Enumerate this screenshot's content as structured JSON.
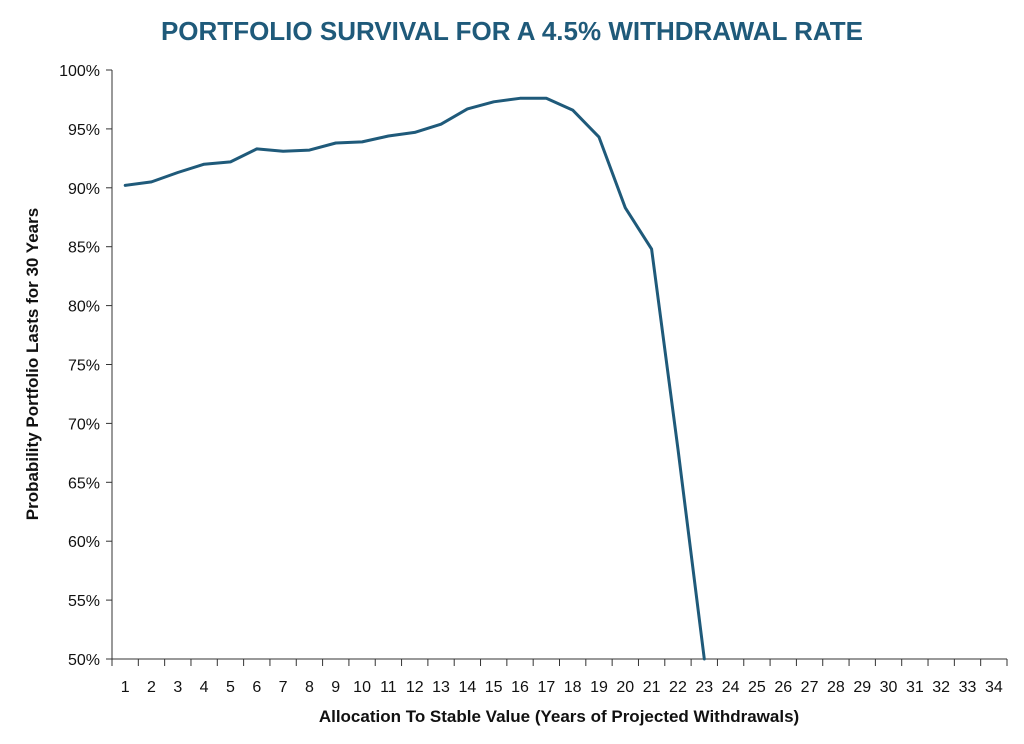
{
  "chart_data": {
    "type": "line",
    "title": "PORTFOLIO SURVIVAL FOR A 4.5% WITHDRAWAL RATE",
    "xlabel": "Allocation To Stable Value (Years of Projected Withdrawals)",
    "ylabel": "Probability Portfolio Lasts for 30 Years",
    "x_categories": [
      "1",
      "2",
      "3",
      "4",
      "5",
      "6",
      "7",
      "8",
      "9",
      "10",
      "11",
      "12",
      "13",
      "14",
      "15",
      "16",
      "17",
      "18",
      "19",
      "20",
      "21",
      "22",
      "23",
      "24",
      "25",
      "26",
      "27",
      "28",
      "29",
      "30",
      "31",
      "32",
      "33",
      "34"
    ],
    "y_ticks": [
      "50%",
      "55%",
      "60%",
      "65%",
      "70%",
      "75%",
      "80%",
      "85%",
      "90%",
      "95%",
      "100%"
    ],
    "ylim": [
      50,
      100
    ],
    "grid": false,
    "series": [
      {
        "color": "#1f5a7a",
        "x": [
          1,
          2,
          3,
          4,
          5,
          6,
          7,
          8,
          9,
          10,
          11,
          12,
          13,
          14,
          15,
          16,
          17,
          18,
          19,
          20,
          21,
          22,
          23
        ],
        "values": [
          90.2,
          90.5,
          91.3,
          92.0,
          92.2,
          93.3,
          93.1,
          93.2,
          93.8,
          93.9,
          94.4,
          94.7,
          95.4,
          96.7,
          97.3,
          97.6,
          97.6,
          96.6,
          94.3,
          88.3,
          84.8,
          67.8,
          50.0
        ]
      }
    ]
  }
}
